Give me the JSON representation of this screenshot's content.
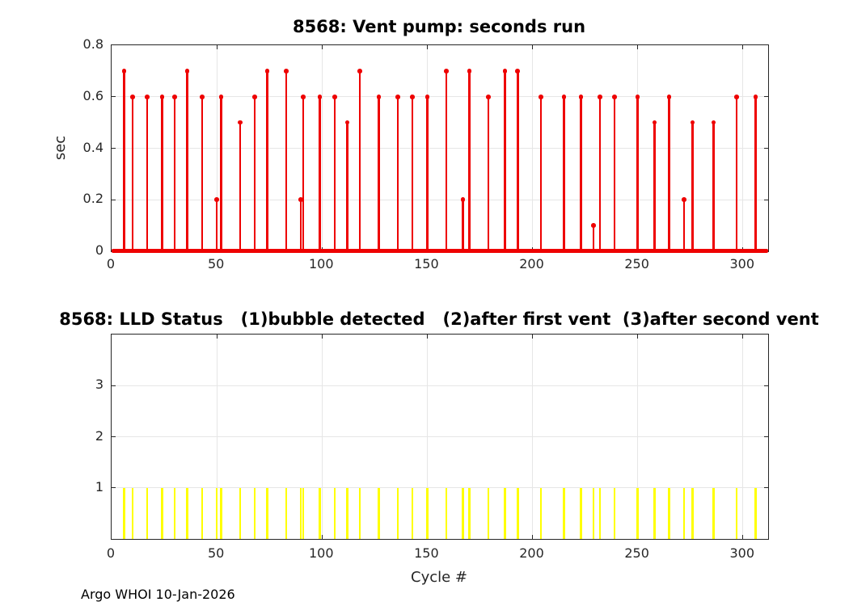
{
  "figure": {
    "footer": "Argo WHOI 10-Jan-2026",
    "background_color": "#ffffff",
    "axis_color": "#262626",
    "grid_color": "#e6e6e6"
  },
  "chart_data": [
    {
      "type": "stem",
      "title": "8568: Vent pump: seconds run",
      "ylabel": "sec",
      "series_color": "#ee0000",
      "xlim": [
        0,
        312
      ],
      "ylim": [
        0,
        0.8
      ],
      "xticks": [
        0,
        50,
        100,
        150,
        200,
        250,
        300
      ],
      "xtick_labels": [
        "0",
        "50",
        "100",
        "150",
        "200",
        "250",
        "300"
      ],
      "yticks": [
        0,
        0.2,
        0.4,
        0.6,
        0.8
      ],
      "ytick_labels": [
        "0",
        "0.2",
        "0.4",
        "0.6",
        "0.8"
      ],
      "grid": true,
      "legend": "none",
      "baseline_y": 0,
      "points": [
        [
          6,
          0.7
        ],
        [
          10,
          0.6
        ],
        [
          17,
          0.6
        ],
        [
          24,
          0.6
        ],
        [
          30,
          0.6
        ],
        [
          36,
          0.7
        ],
        [
          43,
          0.6
        ],
        [
          50,
          0.2
        ],
        [
          52,
          0.6
        ],
        [
          61,
          0.5
        ],
        [
          68,
          0.6
        ],
        [
          74,
          0.7
        ],
        [
          83,
          0.7
        ],
        [
          90,
          0.2
        ],
        [
          91,
          0.6
        ],
        [
          99,
          0.6
        ],
        [
          106,
          0.6
        ],
        [
          112,
          0.5
        ],
        [
          118,
          0.7
        ],
        [
          127,
          0.6
        ],
        [
          136,
          0.6
        ],
        [
          143,
          0.6
        ],
        [
          150,
          0.6
        ],
        [
          159,
          0.7
        ],
        [
          167,
          0.2
        ],
        [
          170,
          0.7
        ],
        [
          179,
          0.6
        ],
        [
          187,
          0.7
        ],
        [
          193,
          0.7
        ],
        [
          204,
          0.6
        ],
        [
          215,
          0.6
        ],
        [
          223,
          0.6
        ],
        [
          229,
          0.1
        ],
        [
          232,
          0.6
        ],
        [
          239,
          0.6
        ],
        [
          250,
          0.6
        ],
        [
          258,
          0.5
        ],
        [
          265,
          0.6
        ],
        [
          272,
          0.2
        ],
        [
          276,
          0.5
        ],
        [
          286,
          0.5
        ],
        [
          297,
          0.6
        ],
        [
          306,
          0.6
        ]
      ]
    },
    {
      "type": "bar",
      "title": "8568: LLD Status   (1)bubble detected   (2)after first vent  (3)after second vent",
      "xlabel": "Cycle #",
      "series_color": "#ffff00",
      "xlim": [
        0,
        312
      ],
      "ylim": [
        0,
        4
      ],
      "xticks": [
        0,
        50,
        100,
        150,
        200,
        250,
        300
      ],
      "xtick_labels": [
        "0",
        "50",
        "100",
        "150",
        "200",
        "250",
        "300"
      ],
      "yticks": [
        1,
        2,
        3
      ],
      "ytick_labels": [
        "1",
        "2",
        "3"
      ],
      "grid": true,
      "legend": "none",
      "bar_value": 1,
      "bar_x": [
        6,
        10,
        17,
        24,
        30,
        36,
        43,
        50,
        52,
        61,
        68,
        74,
        83,
        90,
        91,
        99,
        106,
        112,
        118,
        127,
        136,
        143,
        150,
        159,
        167,
        170,
        179,
        187,
        193,
        204,
        215,
        223,
        229,
        232,
        239,
        250,
        258,
        265,
        272,
        276,
        286,
        297,
        306
      ]
    }
  ]
}
